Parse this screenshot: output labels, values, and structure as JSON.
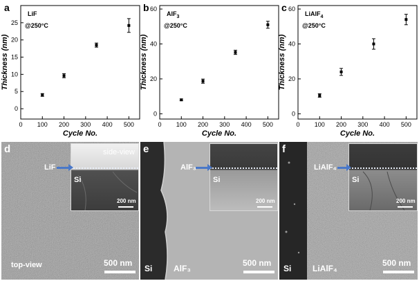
{
  "chart_data": [
    {
      "type": "scatter",
      "panel": "a",
      "label": "LiF",
      "condition": "@250°C",
      "xlabel": "Cycle No.",
      "ylabel": "Thickness (nm)",
      "xlim": [
        0,
        550
      ],
      "ylim": [
        -3,
        30
      ],
      "xticks": [
        0,
        100,
        200,
        300,
        400,
        500
      ],
      "yticks": [
        0,
        5,
        10,
        15,
        20,
        25
      ],
      "points": [
        {
          "x": 100,
          "y": 4.0,
          "err": 0.4
        },
        {
          "x": 200,
          "y": 9.6,
          "err": 0.6
        },
        {
          "x": 350,
          "y": 18.5,
          "err": 0.6
        },
        {
          "x": 500,
          "y": 24.2,
          "err": 2.0
        }
      ]
    },
    {
      "type": "scatter",
      "panel": "b",
      "label": "AlF",
      "label_sub": "3",
      "condition": "@250°C",
      "xlabel": "Cycle No.",
      "ylabel": "Thickness (nm)",
      "xlim": [
        0,
        550
      ],
      "ylim": [
        -3,
        62
      ],
      "xticks": [
        0,
        100,
        200,
        300,
        400,
        500
      ],
      "yticks": [
        0,
        20,
        40,
        60
      ],
      "points": [
        {
          "x": 100,
          "y": 8.0,
          "err": 0.5
        },
        {
          "x": 200,
          "y": 18.7,
          "err": 1.2
        },
        {
          "x": 350,
          "y": 35.2,
          "err": 1.2
        },
        {
          "x": 500,
          "y": 51.0,
          "err": 2.0
        }
      ]
    },
    {
      "type": "scatter",
      "panel": "c",
      "label": "LiAlF",
      "label_sub": "4",
      "condition": "@250°C",
      "xlabel": "Cycle No.",
      "ylabel": "Thickness (nm)",
      "xlim": [
        0,
        550
      ],
      "ylim": [
        -3,
        62
      ],
      "xticks": [
        0,
        100,
        200,
        300,
        400,
        500
      ],
      "yticks": [
        0,
        20,
        40,
        60
      ],
      "points": [
        {
          "x": 100,
          "y": 10.5,
          "err": 1.0
        },
        {
          "x": 200,
          "y": 24.0,
          "err": 2.0
        },
        {
          "x": 350,
          "y": 40.0,
          "err": 3.0
        },
        {
          "x": 500,
          "y": 54.0,
          "err": 3.0
        }
      ]
    }
  ],
  "sem": {
    "d": {
      "letter": "d",
      "inset_title": "side-view",
      "film_label": "LiF",
      "substrate_label": "Si",
      "inset_scale": "200 nm",
      "view_label": "top-view",
      "scale": "500 nm"
    },
    "e": {
      "letter": "e",
      "film_label": "AlF₃",
      "substrate_label": "Si",
      "inset_scale": "200 nm",
      "si_label": "Si",
      "material_label": "AlF₃",
      "scale": "500 nm"
    },
    "f": {
      "letter": "f",
      "film_label": "LiAlF₄",
      "substrate_label": "Si",
      "inset_scale": "200 nm",
      "si_label": "Si",
      "material_label": "LiAlF₄",
      "scale": "500 nm"
    }
  }
}
